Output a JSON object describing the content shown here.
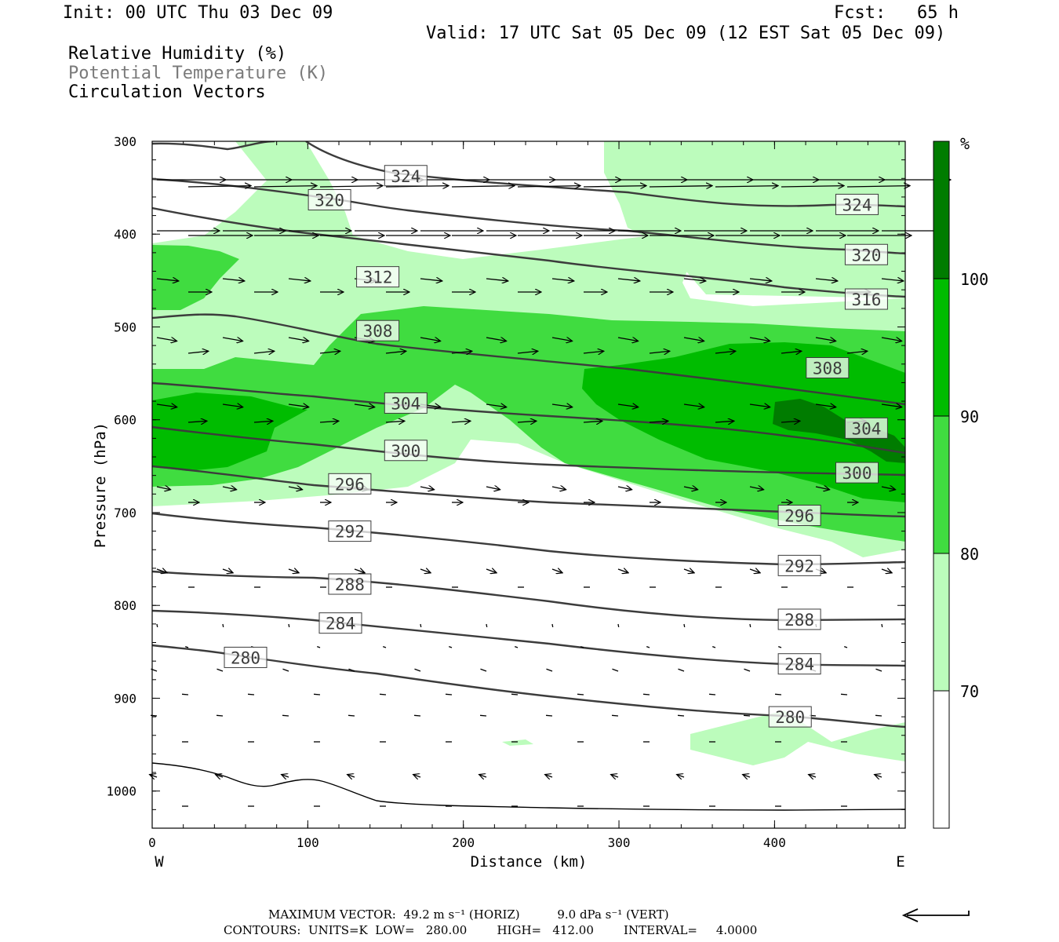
{
  "header": {
    "init": "Init: 00 UTC Thu 03 Dec 09",
    "fcst": "Fcst:   65 h",
    "valid": "Valid: 17 UTC Sat 05 Dec 09 (12 EST Sat 05 Dec 09)",
    "legend": [
      "Relative Humidity (%)",
      "Potential Temperature (K)",
      "Circulation Vectors"
    ]
  },
  "chart_data": {
    "type": "cross-section",
    "xlabel": "Distance (km)",
    "ylabel": "Pressure (hPa)",
    "x_ticks": [
      "0",
      "100",
      "200",
      "300",
      "400"
    ],
    "y_ticks": [
      "300",
      "400",
      "500",
      "600",
      "700",
      "800",
      "900",
      "1000"
    ],
    "x_range": [
      0,
      484
    ],
    "y_range": [
      300,
      1040
    ],
    "y_orientation": "pressure increasing downward",
    "x_end_labels": {
      "left": "W",
      "right": "E"
    },
    "colorbar": {
      "unit": "%",
      "levels": [
        70,
        80,
        90,
        100
      ],
      "colors": [
        "#ffffff",
        "#bcfcbc",
        "#40dc40",
        "#00bc00",
        "#007c00"
      ]
    },
    "isentropes_K": [
      280,
      284,
      288,
      292,
      296,
      300,
      304,
      308,
      312,
      316,
      320,
      324
    ],
    "isentrope_labels": [
      {
        "text": "324",
        "x": 163,
        "p": 337
      },
      {
        "text": "320",
        "x": 114,
        "p": 363
      },
      {
        "text": "312",
        "x": 145,
        "p": 446
      },
      {
        "text": "308",
        "x": 145,
        "p": 504
      },
      {
        "text": "304",
        "x": 163,
        "p": 582
      },
      {
        "text": "300",
        "x": 163,
        "p": 633
      },
      {
        "text": "296",
        "x": 127,
        "p": 669
      },
      {
        "text": "292",
        "x": 127,
        "p": 720
      },
      {
        "text": "288",
        "x": 127,
        "p": 777
      },
      {
        "text": "284",
        "x": 121,
        "p": 819
      },
      {
        "text": "280",
        "x": 60,
        "p": 856
      },
      {
        "text": "324",
        "x": 453,
        "p": 368
      },
      {
        "text": "320",
        "x": 459,
        "p": 422
      },
      {
        "text": "316",
        "x": 459,
        "p": 470
      },
      {
        "text": "308",
        "x": 434,
        "p": 544
      },
      {
        "text": "304",
        "x": 459,
        "p": 609
      },
      {
        "text": "300",
        "x": 453,
        "p": 657
      },
      {
        "text": "296",
        "x": 416,
        "p": 703
      },
      {
        "text": "292",
        "x": 416,
        "p": 757
      },
      {
        "text": "288",
        "x": 416,
        "p": 815
      },
      {
        "text": "284",
        "x": 416,
        "p": 863
      },
      {
        "text": "280",
        "x": 410,
        "p": 920
      }
    ],
    "footer": {
      "max_vector": "MAXIMUM VECTOR:  49.2 m s⁻¹ (HORIZ)          9.0 dPa s⁻¹ (VERT)",
      "contours": "CONTOURS:  UNITS=K  LOW=   280.00        HIGH=   412.00        INTERVAL=     4.0000"
    }
  }
}
